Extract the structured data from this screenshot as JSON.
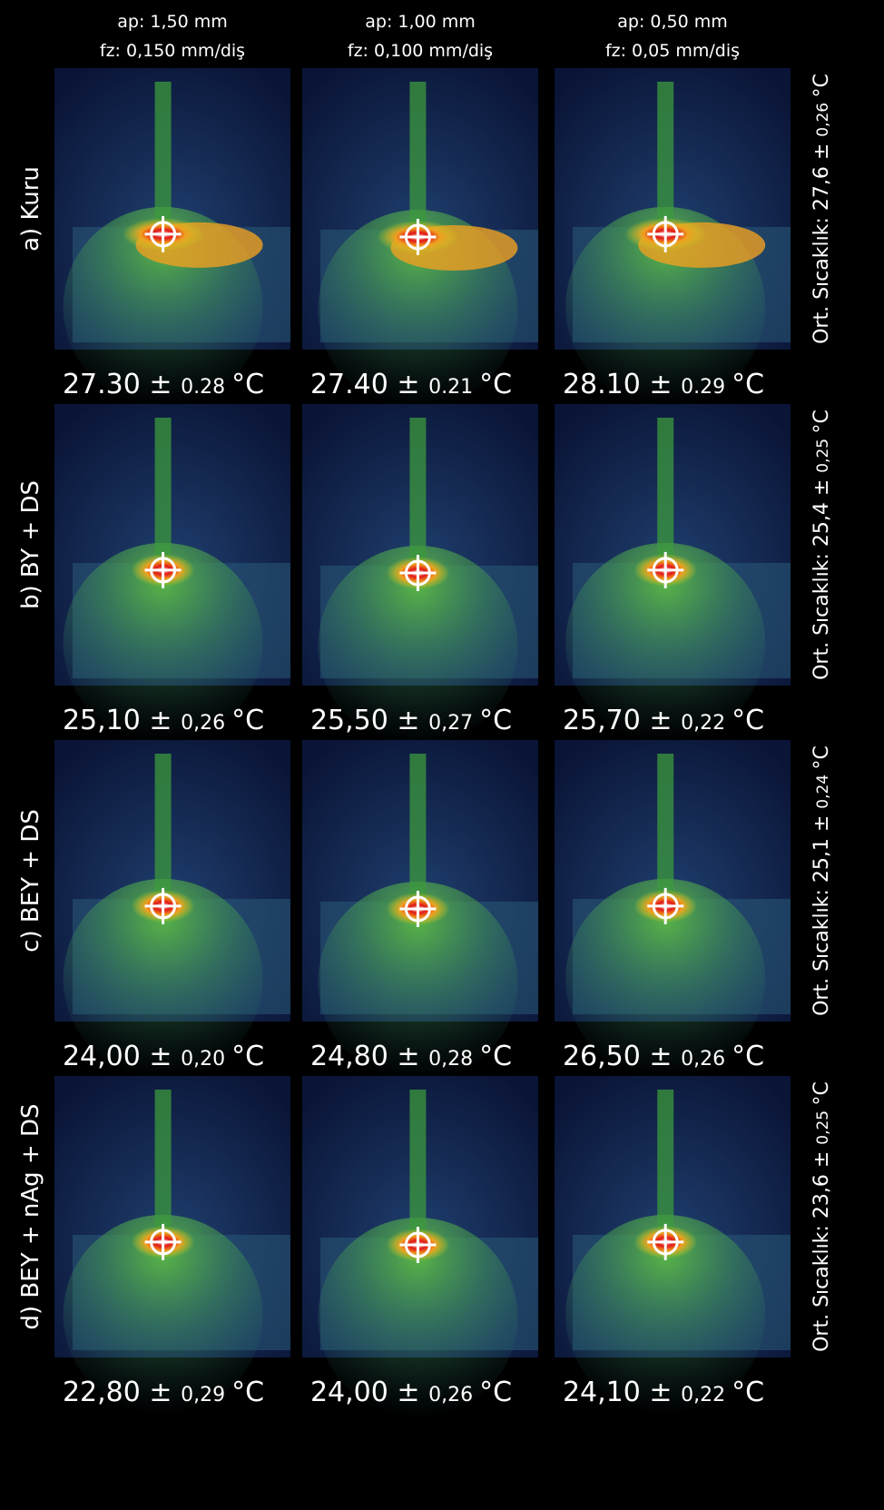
{
  "columns": [
    {
      "ap": "ap: 1,50 mm",
      "fz": "fz: 0,150 mm/diş"
    },
    {
      "ap": "ap: 1,00 mm",
      "fz": "fz: 0,100 mm/diş"
    },
    {
      "ap": "ap: 0,50 mm",
      "fz": "fz: 0,05 mm/diş"
    }
  ],
  "rows": [
    {
      "label": "a) Kuru",
      "mean": {
        "prefix": "Ort. Sıcaklık:",
        "value": "27,6",
        "pm": "±",
        "error": "0,26",
        "unit": "°C"
      },
      "cells": [
        {
          "value": "27.30",
          "pm": "±",
          "error": "0.28",
          "unit": "°C"
        },
        {
          "value": "27.40",
          "pm": "±",
          "error": "0.21",
          "unit": "°C"
        },
        {
          "value": "28.10",
          "pm": "±",
          "error": "0.29",
          "unit": "°C"
        }
      ]
    },
    {
      "label": "b) BY + DS",
      "mean": {
        "prefix": "Ort. Sıcaklık:",
        "value": "25,4",
        "pm": "±",
        "error": "0,25",
        "unit": "°C"
      },
      "cells": [
        {
          "value": "25,10",
          "pm": "±",
          "error": "0,26",
          "unit": "°C"
        },
        {
          "value": "25,50",
          "pm": "±",
          "error": "0,27",
          "unit": "°C"
        },
        {
          "value": "25,70",
          "pm": "±",
          "error": "0,22",
          "unit": "°C"
        }
      ]
    },
    {
      "label": "c) BEY + DS",
      "mean": {
        "prefix": "Ort. Sıcaklık:",
        "value": "25,1",
        "pm": "±",
        "error": "0,24",
        "unit": "°C"
      },
      "cells": [
        {
          "value": "24,00",
          "pm": "±",
          "error": "0,20",
          "unit": "°C"
        },
        {
          "value": "24,80",
          "pm": "±",
          "error": "0,28",
          "unit": "°C"
        },
        {
          "value": "26,50",
          "pm": "±",
          "error": "0,26",
          "unit": "°C"
        }
      ]
    },
    {
      "label": "d) BEY + nAg + DS",
      "mean": {
        "prefix": "Ort. Sıcaklık:",
        "value": "23,6",
        "pm": "±",
        "error": "0,25",
        "unit": "°C"
      },
      "cells": [
        {
          "value": "22,80",
          "pm": "±",
          "error": "0,29",
          "unit": "°C"
        },
        {
          "value": "24,00",
          "pm": "±",
          "error": "0,26",
          "unit": "°C"
        },
        {
          "value": "24,10",
          "pm": "±",
          "error": "0,22",
          "unit": "°C"
        }
      ]
    }
  ]
}
